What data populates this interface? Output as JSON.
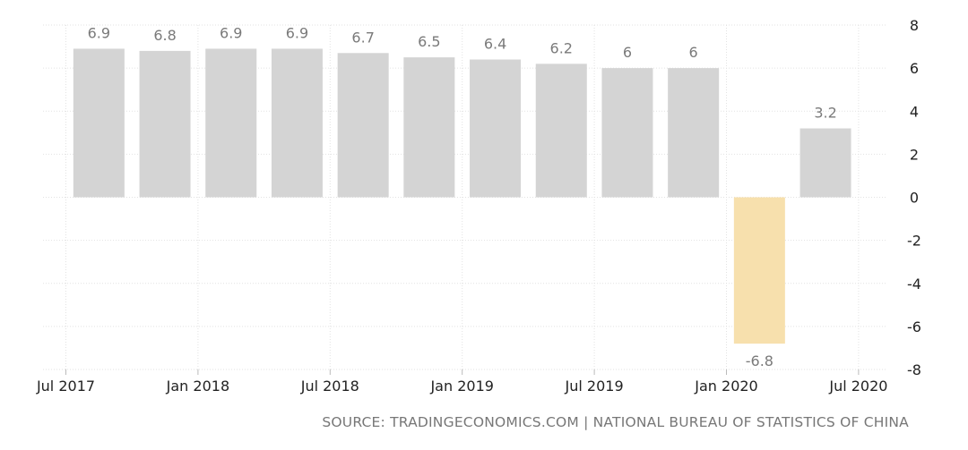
{
  "chart_data": {
    "type": "bar",
    "categories": [
      "Q3 2017",
      "Q4 2017",
      "Q1 2018",
      "Q2 2018",
      "Q3 2018",
      "Q4 2018",
      "Q1 2019",
      "Q2 2019",
      "Q3 2019",
      "Q4 2019",
      "Q1 2020",
      "Q2 2020"
    ],
    "values": [
      6.9,
      6.8,
      6.9,
      6.9,
      6.7,
      6.5,
      6.4,
      6.2,
      6,
      6,
      -6.8,
      3.2
    ],
    "value_labels": [
      "6.9",
      "6.8",
      "6.9",
      "6.9",
      "6.7",
      "6.5",
      "6.4",
      "6.2",
      "6",
      "6",
      "-6.8",
      "3.2"
    ],
    "highlight_index": 10,
    "colors": {
      "bar": "#d4d4d4",
      "highlight": "#f7e0ad",
      "grid": "#e2e2e2",
      "label": "#7a7a7a",
      "tick": "#222222"
    },
    "ylim": [
      -8,
      8
    ],
    "yticks": [
      8,
      6,
      4,
      2,
      0,
      -2,
      -4,
      -6,
      -8
    ],
    "y_axis_position": "right",
    "x_tick_labels": [
      "Jul 2017",
      "Jan 2018",
      "Jul 2018",
      "Jan 2019",
      "Jul 2019",
      "Jan 2020",
      "Jul 2020"
    ],
    "x_tick_positions": [
      0,
      2,
      4,
      6,
      8,
      10,
      12
    ],
    "grid": true,
    "title": "",
    "xlabel": "",
    "ylabel": ""
  },
  "source": "SOURCE: TRADINGECONOMICS.COM | NATIONAL BUREAU OF STATISTICS OF CHINA"
}
